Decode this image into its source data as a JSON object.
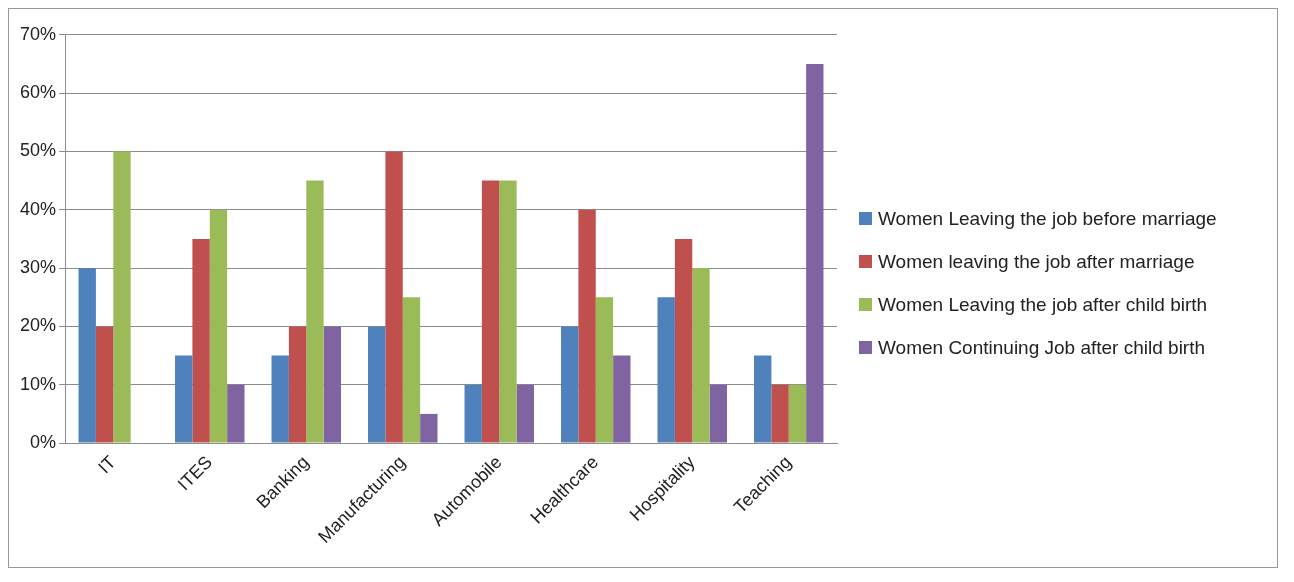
{
  "chart_data": {
    "type": "bar",
    "categories": [
      "IT",
      "ITES",
      "Banking",
      "Manufacturing",
      "Automobile",
      "Healthcare",
      "Hospitality",
      "Teaching"
    ],
    "series": [
      {
        "name": "Women Leaving the job before marriage",
        "color": "#4f81bd",
        "values": [
          30,
          15,
          15,
          20,
          10,
          20,
          25,
          15
        ]
      },
      {
        "name": "Women leaving the job after marriage",
        "color": "#c0504d",
        "values": [
          20,
          35,
          20,
          50,
          45,
          40,
          35,
          10
        ]
      },
      {
        "name": "Women Leaving the job after child birth",
        "color": "#9bbb59",
        "values": [
          50,
          40,
          45,
          25,
          45,
          25,
          30,
          10
        ]
      },
      {
        "name": "Women Continuing Job after child birth",
        "color": "#8064a2",
        "values": [
          0,
          10,
          20,
          5,
          10,
          15,
          10,
          65
        ]
      }
    ],
    "ylim": [
      0,
      70
    ],
    "yticks": [
      {
        "value": 0,
        "label": "0%"
      },
      {
        "value": 10,
        "label": "10%"
      },
      {
        "value": 20,
        "label": "20%"
      },
      {
        "value": 30,
        "label": "30%"
      },
      {
        "value": 40,
        "label": "40%"
      },
      {
        "value": 50,
        "label": "50%"
      },
      {
        "value": 60,
        "label": "60%"
      },
      {
        "value": 70,
        "label": "70%"
      }
    ],
    "grid": "y",
    "legend": "right"
  }
}
